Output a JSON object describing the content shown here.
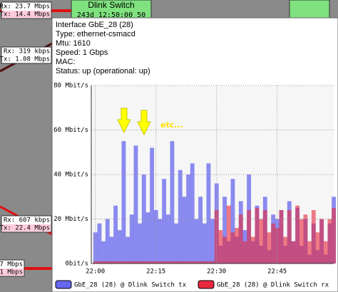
{
  "node": {
    "name": "Dlink Switch",
    "uptime": "243d 12:50:00 50"
  },
  "links": [
    {
      "rx": "Rx: 23.7 Mbps",
      "tx": "Tx: 14.4 Mbps"
    },
    {
      "rx": "Rx: 319 kbps",
      "tx": "Tx: 1.08 Mbps"
    },
    {
      "rx": "Rx: 607 kbps",
      "tx": "Tx: 22.4 Mbps"
    },
    {
      "rx": "7 Mbps",
      "tx": "1 Mbps"
    }
  ],
  "info": [
    "Interface GbE_28 (28)",
    "Type: ethernet-csmacd",
    "Mtu: 1610",
    "Speed: 1 Gbps",
    "MAC:",
    "Status: up (operational: up)"
  ],
  "chart_data": {
    "type": "area",
    "annotation": "etc...",
    "x": [
      "22:00",
      "22:01",
      "22:02",
      "22:03",
      "22:04",
      "22:05",
      "22:06",
      "22:07",
      "22:08",
      "22:09",
      "22:10",
      "22:11",
      "22:12",
      "22:13",
      "22:14",
      "22:15",
      "22:16",
      "22:17",
      "22:18",
      "22:19",
      "22:20",
      "22:21",
      "22:22",
      "22:23",
      "22:24",
      "22:25",
      "22:26",
      "22:27",
      "22:28",
      "22:29",
      "22:30",
      "22:31",
      "22:32",
      "22:33",
      "22:34",
      "22:35",
      "22:36",
      "22:37",
      "22:38",
      "22:39",
      "22:40",
      "22:41",
      "22:42",
      "22:43",
      "22:44",
      "22:45",
      "22:46",
      "22:47",
      "22:48",
      "22:49",
      "22:50",
      "22:51",
      "22:52",
      "22:53",
      "22:54",
      "22:55",
      "22:56",
      "22:57",
      "22:58",
      "22:59"
    ],
    "series": [
      {
        "name": "GbE_28 (28) @ Dlink Switch tx",
        "color": "#6666ee",
        "values": [
          14,
          18,
          10,
          20,
          12,
          26,
          15,
          55,
          12,
          22,
          53,
          18,
          40,
          23,
          52,
          24,
          20,
          38,
          22,
          55,
          18,
          42,
          30,
          40,
          45,
          20,
          30,
          18,
          45,
          20,
          36,
          8,
          30,
          10,
          38,
          12,
          28,
          15,
          40,
          10,
          26,
          8,
          30,
          6,
          22,
          20,
          24,
          8,
          28,
          10,
          25,
          8,
          20,
          4,
          18,
          6,
          20,
          4,
          18,
          30
        ]
      },
      {
        "name": "GbE_28 (28) @ Dlink Switch rx",
        "color": "#e8283c",
        "values": [
          1,
          1,
          1,
          1,
          1,
          1,
          1,
          1,
          1,
          1,
          1,
          1,
          1,
          1,
          1,
          1,
          1,
          1,
          1,
          1,
          1,
          1,
          1,
          1,
          1,
          1,
          1,
          1,
          1,
          1,
          24,
          15,
          12,
          26,
          14,
          16,
          22,
          10,
          24,
          12,
          25,
          20,
          24,
          14,
          18,
          16,
          24,
          12,
          24,
          10,
          26,
          20,
          22,
          10,
          24,
          14,
          20,
          10,
          20,
          25
        ]
      }
    ],
    "xlim": [
      "21:59",
      "22:59"
    ],
    "xticks": [
      "22:00",
      "22:15",
      "22:30",
      "22:45"
    ],
    "ylim": [
      0,
      80
    ],
    "yticks": [
      {
        "value": 0,
        "label": "0bit/s"
      },
      {
        "value": 20,
        "label": "20 Mbit/s"
      },
      {
        "value": 40,
        "label": "40 Mbit/s"
      },
      {
        "value": 60,
        "label": "60 Mbit/s"
      },
      {
        "value": 80,
        "label": "80 Mbit/s"
      }
    ],
    "grid": true
  }
}
